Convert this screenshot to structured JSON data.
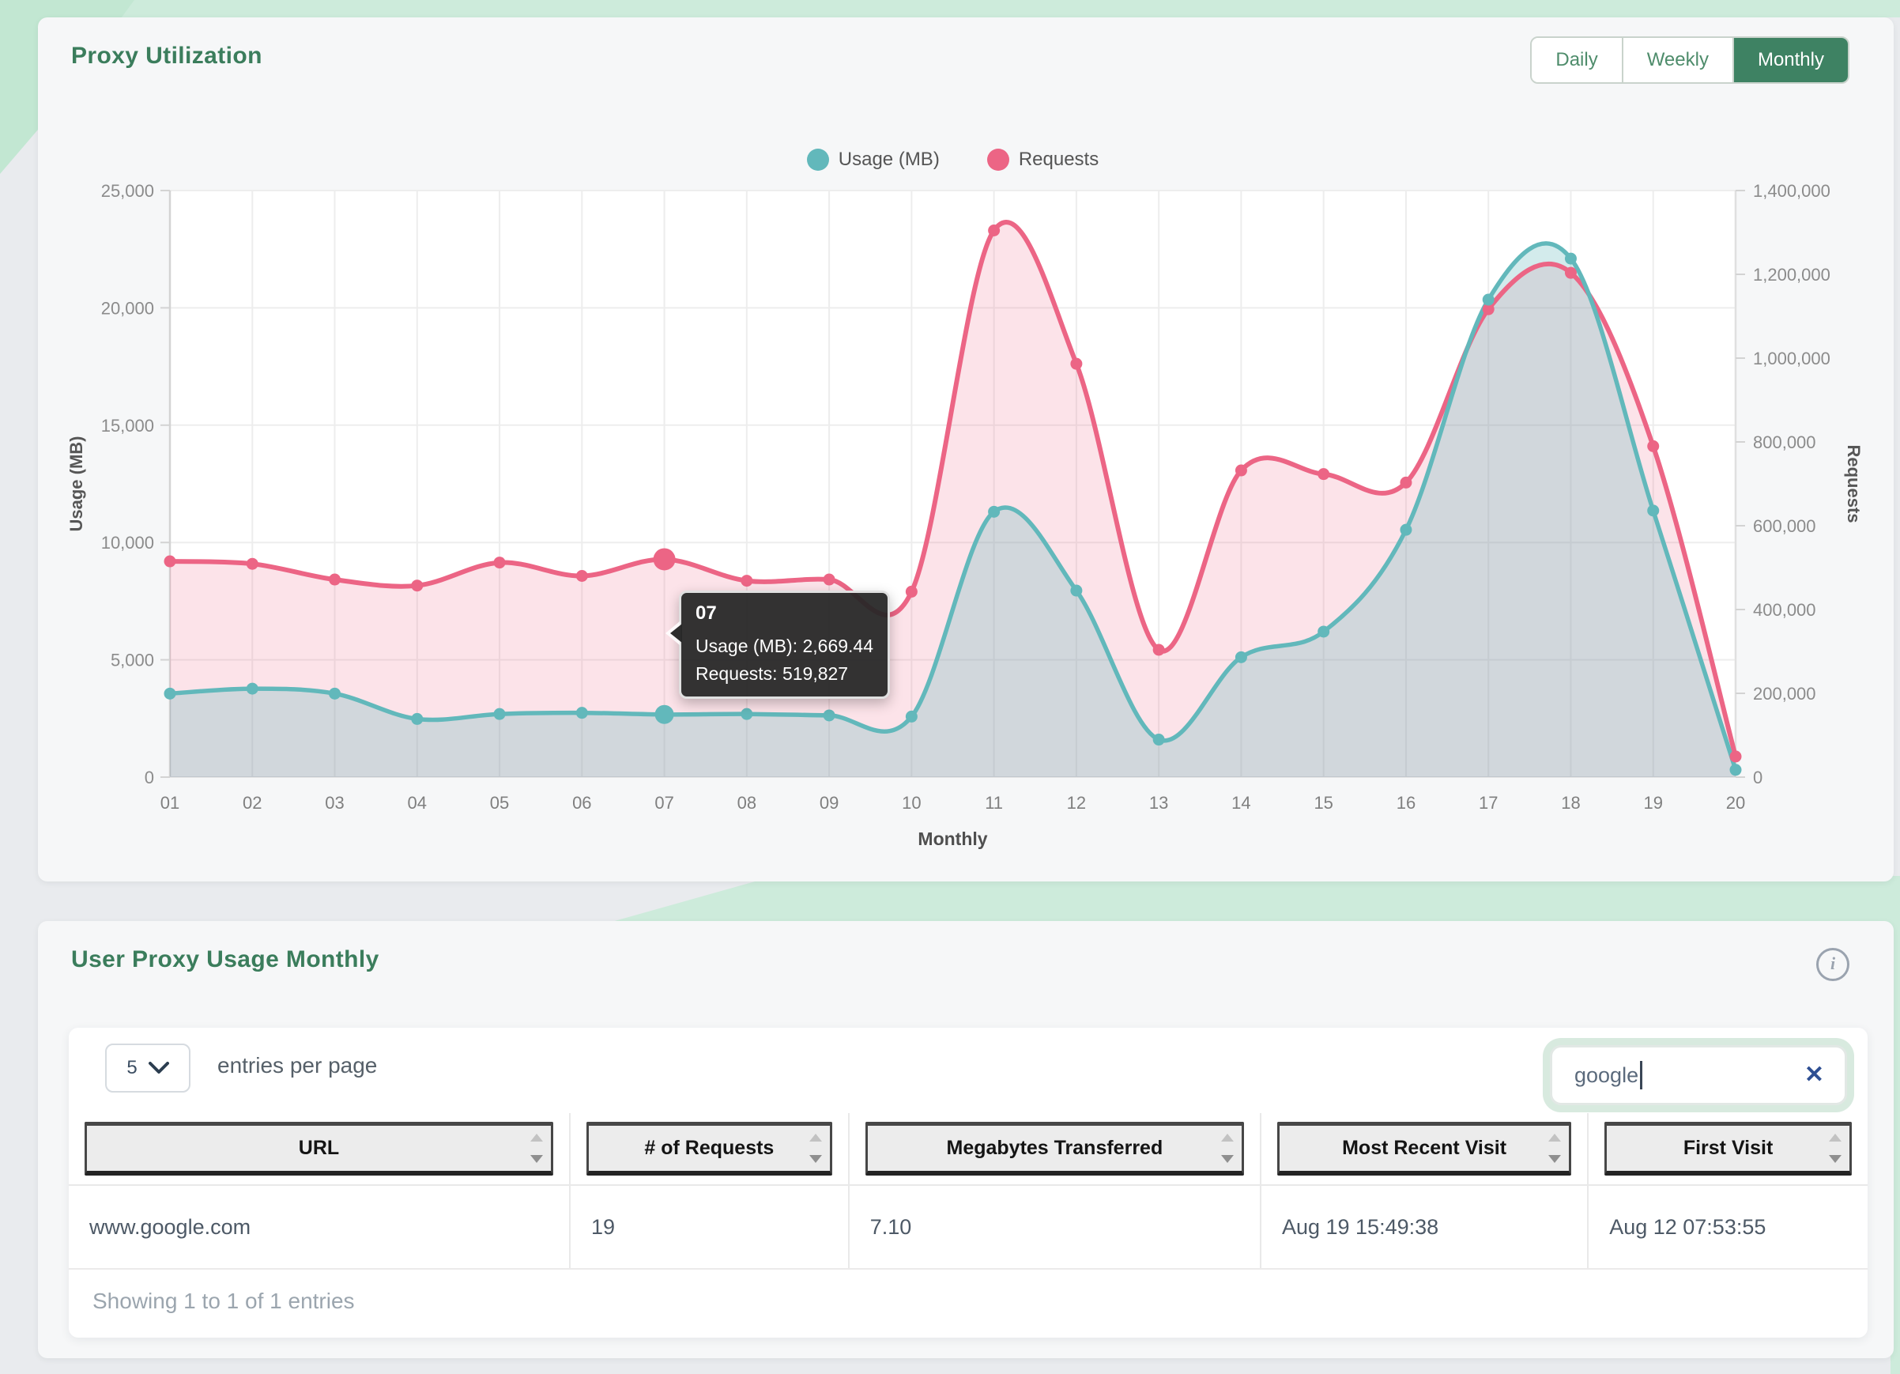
{
  "proxy_card": {
    "title": "Proxy Utilization",
    "range_buttons": [
      {
        "label": "Daily",
        "active": false
      },
      {
        "label": "Weekly",
        "active": false
      },
      {
        "label": "Monthly",
        "active": true
      }
    ]
  },
  "chart_data": {
    "type": "line",
    "x": [
      "01",
      "02",
      "03",
      "04",
      "05",
      "06",
      "07",
      "08",
      "09",
      "10",
      "11",
      "12",
      "13",
      "14",
      "15",
      "16",
      "17",
      "18",
      "19",
      "20"
    ],
    "xlabel": "Monthly",
    "series": [
      {
        "name": "Usage (MB)",
        "axis": "left",
        "color": "#62b8bb",
        "values": [
          3560,
          3770,
          3560,
          2480,
          2690,
          2740,
          2669.44,
          2690,
          2630,
          2580,
          11310,
          7950,
          1600,
          5110,
          6200,
          10540,
          20350,
          22100,
          11360,
          310
        ]
      },
      {
        "name": "Requests",
        "axis": "right",
        "color": "#ec6585",
        "values": [
          515000,
          509000,
          471600,
          457100,
          512100,
          480200,
          519827,
          468700,
          471600,
          442600,
          1304700,
          986500,
          303800,
          732000,
          723300,
          703000,
          1116700,
          1203500,
          789800,
          49200
        ]
      }
    ],
    "left_axis": {
      "label": "Usage (MB)",
      "min": 0,
      "max": 25000,
      "ticks": [
        "25,000",
        "20,000",
        "15,000",
        "10,000",
        "5,000",
        "0"
      ]
    },
    "right_axis": {
      "label": "Requests",
      "min": 0,
      "max": 1400000,
      "ticks": [
        "1,400,000",
        "1,200,000",
        "1,000,000",
        "800,000",
        "600,000",
        "400,000",
        "200,000",
        "0"
      ]
    },
    "legend_position": "top",
    "grid": true,
    "tooltip": {
      "title": "07",
      "usage_line": "Usage (MB): 2,669.44",
      "requests_line": "Requests: 519,827",
      "hover_index": 6
    }
  },
  "usage_card": {
    "title": "User Proxy Usage Monthly",
    "entries_select": {
      "value": "5"
    },
    "entries_label": "entries per page",
    "search": {
      "value": "google",
      "clear_label": "✕"
    },
    "table": {
      "columns": [
        "URL",
        "# of Requests",
        "Megabytes Transferred",
        "Most Recent Visit",
        "First Visit"
      ],
      "rows": [
        [
          "www.google.com",
          "19",
          "7.10",
          "Aug 19 15:49:38",
          "Aug 12 07:53:55"
        ]
      ]
    },
    "footer": "Showing 1 to 1 of 1 entries"
  },
  "colors": {
    "accent_green": "#3e8263",
    "title_green": "#3b7d5c",
    "usage_series": "#62b8bb",
    "requests_series": "#ec6585",
    "mint_decor": "#cdebdb",
    "tooltip_bg": "#262626"
  }
}
